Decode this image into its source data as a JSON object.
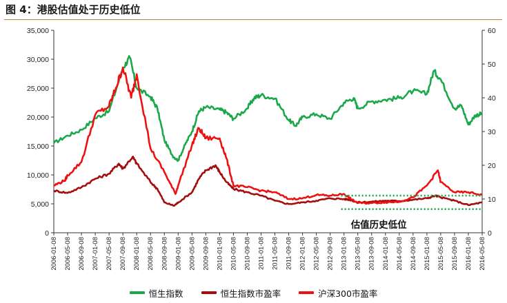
{
  "figure": {
    "title": "图 4：港股估值处于历史低位"
  },
  "chart_data": {
    "type": "line",
    "title": "",
    "left_axis": {
      "min": 0,
      "max": 35000,
      "ticks": [
        0,
        5000,
        10000,
        15000,
        20000,
        25000,
        30000,
        35000
      ],
      "tick_labels": [
        "0",
        "5,000",
        "10,000",
        "15,000",
        "20,000",
        "25,000",
        "30,000",
        "35,000"
      ]
    },
    "right_axis": {
      "min": 0,
      "max": 60,
      "ticks": [
        0,
        10,
        20,
        30,
        40,
        50,
        60
      ],
      "tick_labels": [
        "0",
        "10",
        "20",
        "30",
        "40",
        "50",
        "60"
      ]
    },
    "x_ticks": [
      "2006-01-08",
      "2006-05-08",
      "2006-09-08",
      "2007-01-08",
      "2007-05-08",
      "2007-09-08",
      "2008-01-08",
      "2008-05-08",
      "2008-09-08",
      "2009-01-08",
      "2009-05-08",
      "2009-09-08",
      "2010-01-08",
      "2010-05-08",
      "2010-09-08",
      "2011-01-08",
      "2011-05-08",
      "2011-09-08",
      "2012-01-08",
      "2012-05-08",
      "2012-09-08",
      "2013-01-08",
      "2013-05-08",
      "2013-09-08",
      "2014-01-08",
      "2014-05-08",
      "2014-09-08",
      "2015-01-08",
      "2015-05-08",
      "2015-09-08",
      "2016-01-08",
      "2016-05-08"
    ],
    "colors": {
      "hsi": "#1ba84a",
      "hsi_pe": "#a50d0d",
      "hs300_pe": "#ee1111",
      "band": "#1ba84a"
    },
    "series": [
      {
        "name": "恒生指数",
        "axis": "left",
        "color": "#1ba84a",
        "points": [
          [
            0,
            15500
          ],
          [
            1,
            16800
          ],
          [
            2,
            17800
          ],
          [
            3,
            19800
          ],
          [
            4,
            21000
          ],
          [
            5,
            28500
          ],
          [
            5.5,
            30300
          ],
          [
            6,
            25000
          ],
          [
            7,
            23500
          ],
          [
            7.5,
            21500
          ],
          [
            8,
            16000
          ],
          [
            8.6,
            13300
          ],
          [
            9,
            12500
          ],
          [
            9.5,
            15200
          ],
          [
            10,
            17500
          ],
          [
            10.5,
            21000
          ],
          [
            11,
            21700
          ],
          [
            12,
            21300
          ],
          [
            12.5,
            20800
          ],
          [
            13,
            19700
          ],
          [
            14,
            21500
          ],
          [
            14.5,
            23300
          ],
          [
            15,
            23800
          ],
          [
            16,
            23200
          ],
          [
            17,
            19500
          ],
          [
            17.5,
            18500
          ],
          [
            18,
            20000
          ],
          [
            19,
            20500
          ],
          [
            20,
            19700
          ],
          [
            21,
            22500
          ],
          [
            21.7,
            23300
          ],
          [
            22,
            21500
          ],
          [
            23,
            22700
          ],
          [
            24,
            23000
          ],
          [
            25,
            23300
          ],
          [
            26,
            24500
          ],
          [
            27,
            24000
          ],
          [
            27.5,
            28000
          ],
          [
            28,
            26500
          ],
          [
            29,
            21500
          ],
          [
            29.5,
            22000
          ],
          [
            30,
            18700
          ],
          [
            30.5,
            20300
          ],
          [
            31,
            20600
          ]
        ]
      },
      {
        "name": "恒生指数市盈率",
        "axis": "right",
        "color": "#a50d0d",
        "points": [
          [
            0,
            12.5
          ],
          [
            1,
            11.8
          ],
          [
            2,
            13.5
          ],
          [
            3,
            16
          ],
          [
            4,
            17.5
          ],
          [
            4.7,
            20.5
          ],
          [
            5,
            19
          ],
          [
            5.7,
            22.5
          ],
          [
            6,
            20.5
          ],
          [
            7,
            15
          ],
          [
            7.5,
            13
          ],
          [
            8,
            9
          ],
          [
            8.7,
            8
          ],
          [
            9,
            9
          ],
          [
            10,
            12
          ],
          [
            10.5,
            16
          ],
          [
            11,
            18.5
          ],
          [
            11.7,
            20
          ],
          [
            12,
            18
          ],
          [
            12.5,
            15
          ],
          [
            13,
            13
          ],
          [
            14,
            12
          ],
          [
            15,
            11
          ],
          [
            16,
            9.5
          ],
          [
            17,
            8.5
          ],
          [
            18,
            9
          ],
          [
            19,
            9.5
          ],
          [
            20,
            10.2
          ],
          [
            21,
            10
          ],
          [
            21.4,
            9.8
          ],
          [
            22,
            9
          ],
          [
            23,
            9.2
          ],
          [
            24,
            9.5
          ],
          [
            25,
            9.4
          ],
          [
            26,
            9.8
          ],
          [
            27,
            10.2
          ],
          [
            27.6,
            11
          ],
          [
            28,
            10.5
          ],
          [
            29,
            9.5
          ],
          [
            30,
            8.2
          ],
          [
            31,
            9
          ]
        ]
      },
      {
        "name": "沪深300市盈率",
        "axis": "right",
        "color": "#ee1111",
        "points": [
          [
            0,
            14
          ],
          [
            0.8,
            15.5
          ],
          [
            1,
            17
          ],
          [
            2,
            21
          ],
          [
            3,
            35
          ],
          [
            4,
            37.5
          ],
          [
            4.5,
            43
          ],
          [
            5,
            49
          ],
          [
            5.6,
            40
          ],
          [
            6,
            47
          ],
          [
            7,
            25
          ],
          [
            8,
            18
          ],
          [
            8.8,
            11.5
          ],
          [
            9,
            14
          ],
          [
            10,
            26
          ],
          [
            10.5,
            31
          ],
          [
            11,
            28
          ],
          [
            12,
            28
          ],
          [
            12.5,
            22
          ],
          [
            13,
            14
          ],
          [
            14,
            13.5
          ],
          [
            15,
            12.5
          ],
          [
            16,
            12
          ],
          [
            17,
            10
          ],
          [
            18,
            10.2
          ],
          [
            19,
            11.2
          ],
          [
            20,
            11
          ],
          [
            21,
            11.5
          ],
          [
            21.5,
            10
          ],
          [
            22,
            8.8
          ],
          [
            23,
            8.8
          ],
          [
            24,
            9
          ],
          [
            25,
            9.2
          ],
          [
            26,
            10.5
          ],
          [
            27,
            14
          ],
          [
            27.8,
            18.5
          ],
          [
            28,
            15
          ],
          [
            29,
            12
          ],
          [
            30,
            12
          ],
          [
            31,
            11.2
          ]
        ]
      }
    ],
    "reference_bands": [
      {
        "y": 11,
        "axis": "right",
        "from": 20.8,
        "to": 31
      },
      {
        "y": 7,
        "axis": "right",
        "from": 20.8,
        "to": 31
      }
    ],
    "annotation": "估值历史低位"
  }
}
